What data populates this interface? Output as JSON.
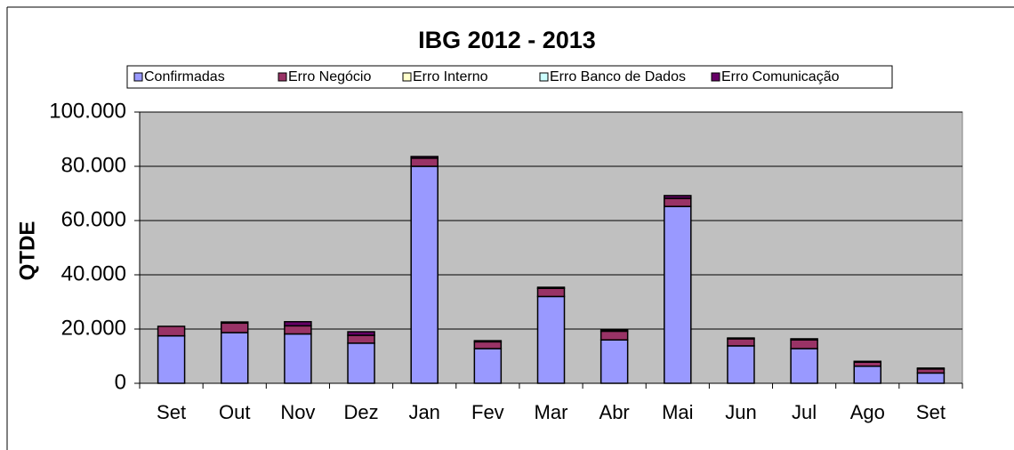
{
  "chart_data": {
    "type": "stacked_bar",
    "title": "IBG 2012 - 2013",
    "y_label": "QTDE",
    "categories": [
      "Set",
      "Out",
      "Nov",
      "Dez",
      "Jan",
      "Fev",
      "Mar",
      "Abr",
      "Mai",
      "Jun",
      "Jul",
      "Ago",
      "Set"
    ],
    "series": [
      {
        "name": "Confirmadas",
        "color": "#9999ff",
        "values": [
          17500,
          18700,
          18200,
          14800,
          80000,
          12800,
          32000,
          16000,
          65200,
          13800,
          12800,
          6300,
          3800
        ]
      },
      {
        "name": "Erro Negócio",
        "color": "#993366",
        "values": [
          3500,
          3500,
          3000,
          2900,
          3000,
          2500,
          3000,
          3200,
          3000,
          2600,
          3200,
          1500,
          1500
        ]
      },
      {
        "name": "Erro Interno",
        "color": "#ffffcc",
        "values": [
          0,
          0,
          0,
          0,
          0,
          0,
          0,
          0,
          0,
          0,
          0,
          0,
          0
        ]
      },
      {
        "name": "Erro Banco de Dados",
        "color": "#ccffff",
        "values": [
          0,
          0,
          0,
          0,
          0,
          0,
          0,
          0,
          0,
          0,
          0,
          0,
          0
        ]
      },
      {
        "name": "Erro Comunicação",
        "color": "#660066",
        "values": [
          0,
          400,
          1500,
          1300,
          600,
          400,
          400,
          500,
          1000,
          300,
          400,
          300,
          300
        ]
      }
    ],
    "ylim": [
      0,
      100000
    ],
    "yticks": [
      0,
      {
        "value": 20000,
        "label": "20.000"
      },
      {
        "value": 40000,
        "label": "40.000"
      },
      {
        "value": 60000,
        "label": "60.000"
      },
      {
        "value": 80000,
        "label": "80.000"
      },
      {
        "value": 100000,
        "label": "100.000"
      }
    ],
    "grid": true,
    "legend": "top",
    "plot_background": "#c0c0c0"
  }
}
